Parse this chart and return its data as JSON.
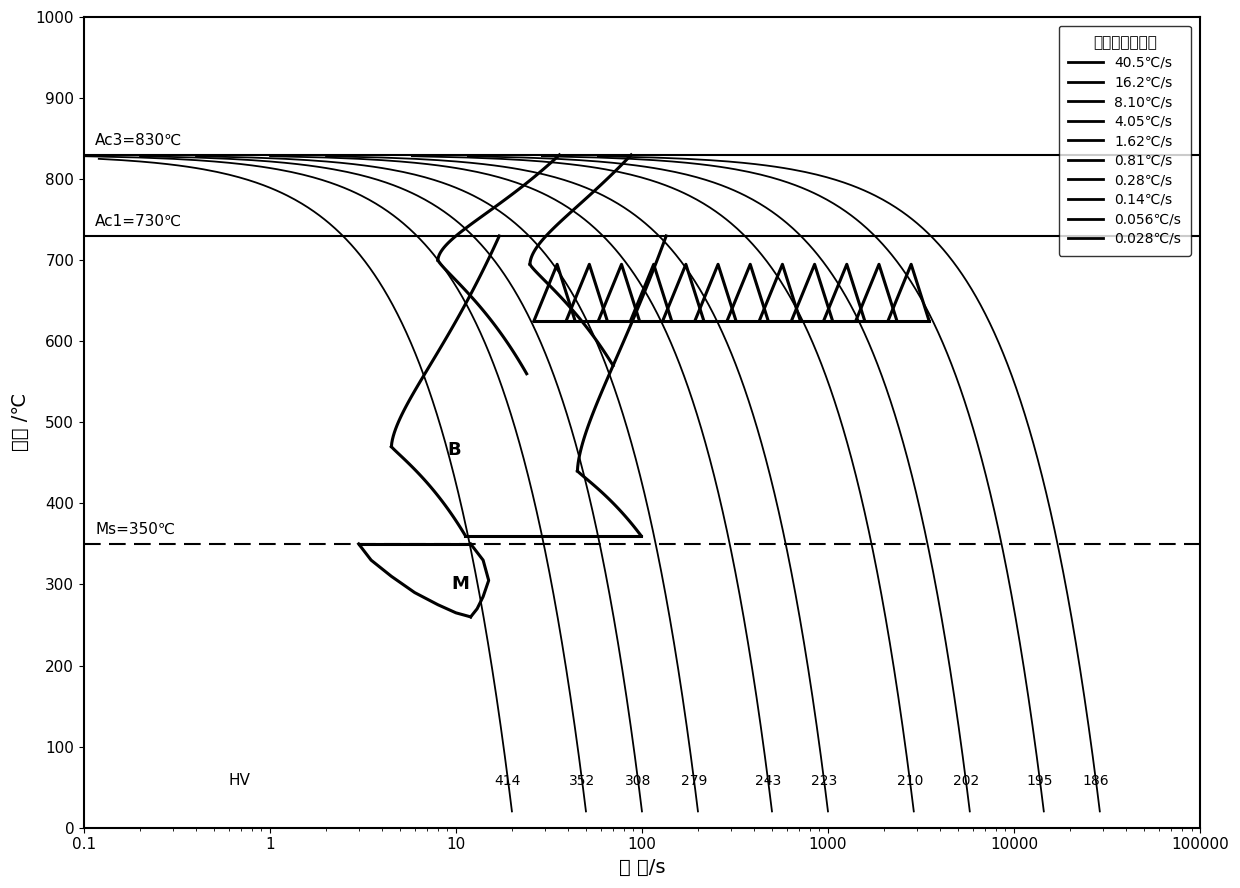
{
  "xlabel": "时 间/s",
  "ylabel": "温度 /℃",
  "ylim": [
    0,
    1000
  ],
  "Ac3": 830,
  "Ac1": 730,
  "Ms": 350,
  "legend_title": "曲线从右往左：",
  "legend_labels": [
    "40.5℃/s",
    "16.2℃/s",
    "8.10℃/s",
    "4.05℃/s",
    "1.62℃/s",
    "0.81℃/s",
    "0.28℃/s",
    "0.14℃/s",
    "0.056℃/s",
    "0.028℃/s"
  ],
  "HV_values": [
    "414",
    "352",
    "308",
    "279",
    "243",
    "223",
    "210",
    "202",
    "195",
    "186"
  ],
  "cooling_rates": [
    40.5,
    16.2,
    8.1,
    4.05,
    1.62,
    0.81,
    0.28,
    0.14,
    0.056,
    0.028
  ],
  "background_color": "#ffffff",
  "line_color": "#000000"
}
